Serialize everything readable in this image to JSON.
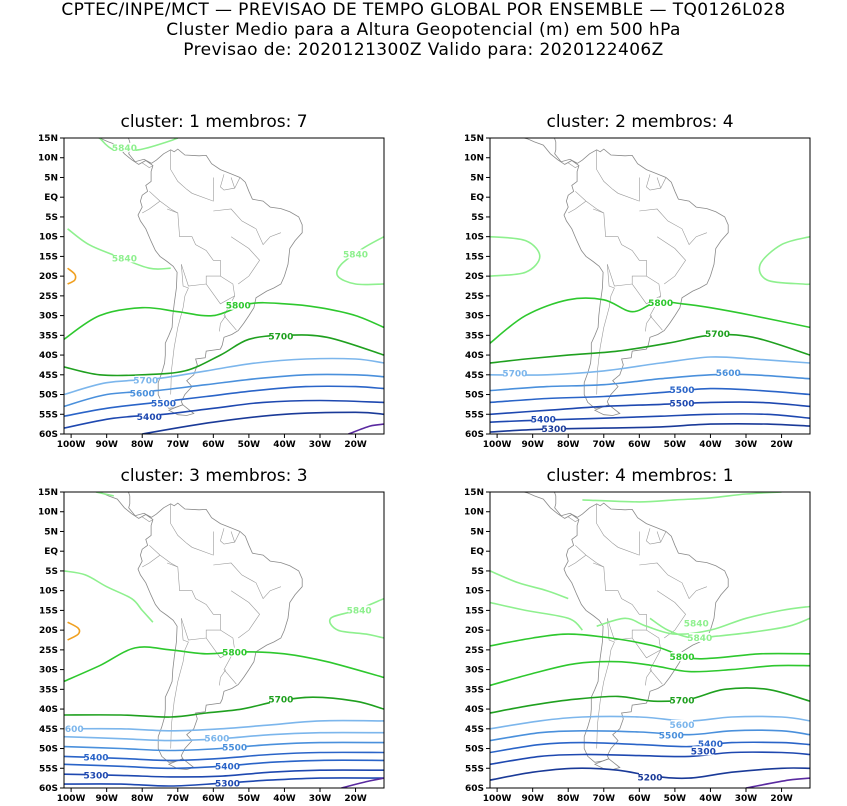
{
  "header": {
    "line1": "CPTEC/INPE/MCT — PREVISAO DE TEMPO GLOBAL POR ENSEMBLE — TQ0126L028",
    "line2": "Cluster Medio para a Altura Geopotencial (m) em 500 hPa",
    "line3": "Previsao de: 2020121300Z    Valido para: 2020122406Z"
  },
  "axes": {
    "lat_labels": [
      "15N",
      "10N",
      "5N",
      "EQ",
      "5S",
      "10S",
      "15S",
      "20S",
      "25S",
      "30S",
      "35S",
      "40S",
      "45S",
      "50S",
      "55S",
      "60S"
    ],
    "lon_labels": [
      "100W",
      "90W",
      "80W",
      "70W",
      "60W",
      "50W",
      "40W",
      "30W",
      "20W"
    ]
  },
  "colors": {
    "c5840": "#8ef08e",
    "c5800": "#2ec82e",
    "c5700": "#1fa01f",
    "c5600": "#7cb6ec",
    "c5500": "#4a90dc",
    "c5400": "#2a64c8",
    "c5300": "#1e48b0",
    "c5200": "#1a3a98",
    "c5100": "#5a2aa0",
    "c5880": "#f0a020"
  },
  "panels": [
    {
      "title": "cluster: 1   membros: 7",
      "labels": [
        "5840",
        "5840",
        "5840",
        "5800",
        "5700",
        "5700",
        "5600",
        "5500",
        "5400",
        "5300"
      ]
    },
    {
      "title": "cluster: 2   membros: 4",
      "labels": [
        "5800",
        "5700",
        "5700",
        "5600",
        "5500",
        "5500",
        "5400",
        "5300",
        "5300",
        "5200"
      ]
    },
    {
      "title": "cluster: 3   membros: 3",
      "labels": [
        "5840",
        "5800",
        "5700",
        "5600",
        "5600",
        "5500",
        "5400",
        "5400",
        "5300",
        "5300"
      ]
    },
    {
      "title": "cluster: 4   membros: 1",
      "labels": [
        "5840",
        "5840",
        "5800",
        "5700",
        "5600",
        "5500",
        "5400",
        "5300",
        "5200"
      ]
    }
  ]
}
